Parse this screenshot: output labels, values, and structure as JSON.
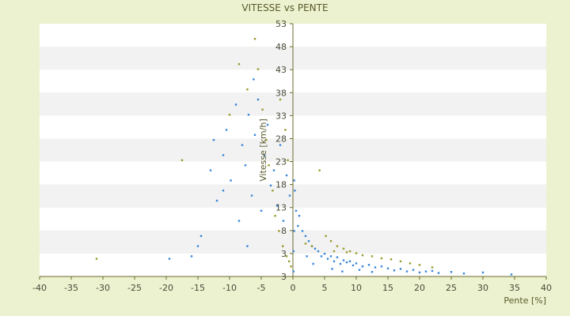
{
  "chart_data": {
    "type": "scatter",
    "title": "VITESSE vs PENTE",
    "xlabel": "Pente [%]",
    "ylabel": "Vitesse [km/h]",
    "xlim": [
      -40,
      40
    ],
    "ylim": [
      3,
      53
    ],
    "x_ticks": [
      "-40",
      "-35",
      "-30",
      "-25",
      "-20",
      "-15",
      "-10",
      "-5",
      "0",
      "5",
      "10",
      "15",
      "20",
      "25",
      "30",
      "35",
      "40"
    ],
    "y_ticks": [
      "3",
      "3",
      "8",
      "13",
      "18",
      "23",
      "28",
      "33",
      "38",
      "43",
      "48",
      "53"
    ],
    "grid": "alternating horizontal bands",
    "legend": "none",
    "colors": {
      "background": "#ecf2cf",
      "band_light": "#ffffff",
      "band_dark": "#f2f2f2",
      "axis": "#6b6b2e",
      "series_blue": "#3a86d9",
      "series_olive": "#9a9a2e"
    },
    "series": [
      {
        "color": "#3a86d9",
        "points": [
          [
            -16,
            7
          ],
          [
            -14.5,
            11
          ],
          [
            -13,
            24
          ],
          [
            -12,
            18
          ],
          [
            -11,
            27
          ],
          [
            -10.5,
            32
          ],
          [
            -9.8,
            22
          ],
          [
            -9,
            37
          ],
          [
            -8.5,
            14
          ],
          [
            -8,
            29
          ],
          [
            -7.5,
            25
          ],
          [
            -7,
            35
          ],
          [
            -6.5,
            19
          ],
          [
            -6,
            31
          ],
          [
            -5.5,
            38
          ],
          [
            -5,
            16
          ],
          [
            -4.5,
            27
          ],
          [
            -4,
            33
          ],
          [
            -3.5,
            21
          ],
          [
            -3,
            24
          ],
          [
            -2.5,
            17
          ],
          [
            -2,
            29
          ],
          [
            -1.5,
            14
          ],
          [
            -1,
            23
          ],
          [
            -0.5,
            19
          ],
          [
            0.3,
            20
          ],
          [
            0.5,
            16
          ],
          [
            0.8,
            13
          ],
          [
            1,
            15
          ],
          [
            1.5,
            12
          ],
          [
            2,
            11
          ],
          [
            2.5,
            10
          ],
          [
            3,
            9
          ],
          [
            3.5,
            8.5
          ],
          [
            4,
            8
          ],
          [
            4.5,
            7
          ],
          [
            5,
            7.5
          ],
          [
            5.5,
            6.5
          ],
          [
            6,
            7
          ],
          [
            6.5,
            6
          ],
          [
            7,
            6.8
          ],
          [
            7.5,
            5.5
          ],
          [
            8,
            6.2
          ],
          [
            8.5,
            5.8
          ],
          [
            9,
            6
          ],
          [
            9.5,
            5.2
          ],
          [
            10,
            5.6
          ],
          [
            11,
            5
          ],
          [
            12,
            5.3
          ],
          [
            13,
            4.8
          ],
          [
            14,
            5
          ],
          [
            15,
            4.6
          ],
          [
            16,
            4.2
          ],
          [
            17,
            4.5
          ],
          [
            18,
            4
          ],
          [
            19,
            4.3
          ],
          [
            20,
            3.8
          ],
          [
            21,
            4
          ],
          [
            22,
            4.1
          ],
          [
            23,
            3.7
          ],
          [
            25,
            3.9
          ],
          [
            27,
            3.6
          ],
          [
            30,
            3.8
          ],
          [
            34.5,
            3.4
          ],
          [
            -19.5,
            6.5
          ],
          [
            -15,
            9
          ],
          [
            -12.5,
            30
          ],
          [
            -11,
            20
          ],
          [
            -7.2,
            9
          ],
          [
            -6.2,
            42
          ],
          [
            0.1,
            4
          ],
          [
            0.1,
            8
          ],
          [
            0.2,
            12
          ],
          [
            0.2,
            22
          ],
          [
            6.2,
            4.5
          ],
          [
            7.8,
            4
          ],
          [
            10.5,
            4.3
          ],
          [
            12.5,
            3.9
          ],
          [
            2.2,
            7
          ],
          [
            3.2,
            5.5
          ]
        ]
      },
      {
        "color": "#9a9a2e",
        "points": [
          [
            -31,
            6.5
          ],
          [
            -17.5,
            26
          ],
          [
            -10,
            35
          ],
          [
            -8.5,
            45
          ],
          [
            -7.2,
            40
          ],
          [
            -6.8,
            54
          ],
          [
            -6,
            50
          ],
          [
            -5.5,
            44
          ],
          [
            -4.8,
            36
          ],
          [
            -4.2,
            30
          ],
          [
            -3.8,
            25
          ],
          [
            -3.2,
            20
          ],
          [
            -2.8,
            15
          ],
          [
            -2.2,
            12
          ],
          [
            -1.6,
            9
          ],
          [
            -1,
            7
          ],
          [
            -0.6,
            6
          ],
          [
            -0.3,
            5
          ],
          [
            4.2,
            24
          ],
          [
            5.2,
            11
          ],
          [
            6,
            10
          ],
          [
            7,
            9
          ],
          [
            8,
            8.5
          ],
          [
            9,
            8
          ],
          [
            10,
            7.6
          ],
          [
            11,
            7.2
          ],
          [
            12.5,
            7
          ],
          [
            14,
            6.6
          ],
          [
            15.5,
            6.4
          ],
          [
            17,
            6
          ],
          [
            18.5,
            5.6
          ],
          [
            20,
            5.3
          ],
          [
            22,
            4.8
          ],
          [
            -2,
            38
          ],
          [
            -1.2,
            32
          ],
          [
            -0.8,
            26
          ],
          [
            2,
            9.5
          ],
          [
            3,
            9
          ],
          [
            6.5,
            8
          ],
          [
            8.5,
            7.8
          ]
        ]
      }
    ]
  }
}
